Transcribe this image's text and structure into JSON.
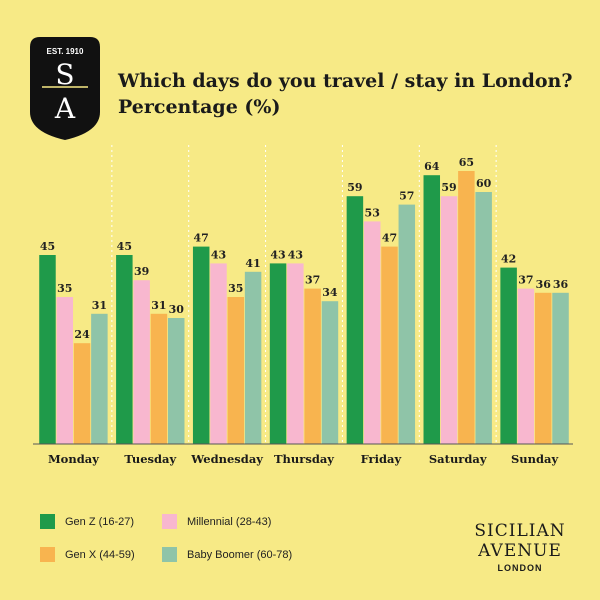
{
  "brand": {
    "est": "EST. 1910",
    "monogram_top": "S",
    "monogram_bottom": "A",
    "name_line1": "SICILIAN",
    "name_line2": "AVENUE",
    "name_line3": "LONDON"
  },
  "chart_data": {
    "type": "bar",
    "title": "Which days do you travel / stay in London?",
    "subtitle": "Percentage (%)",
    "categories": [
      "Monday",
      "Tuesday",
      "Wednesday",
      "Thursday",
      "Friday",
      "Saturday",
      "Sunday"
    ],
    "series": [
      {
        "name": "Gen Z (16-27)",
        "color": "#1f9a4a",
        "values": [
          45,
          45,
          47,
          43,
          59,
          64,
          42
        ]
      },
      {
        "name": "Millennial (28-43)",
        "color": "#f8b7cf",
        "values": [
          35,
          39,
          43,
          43,
          53,
          59,
          37
        ]
      },
      {
        "name": "Gen X (44-59)",
        "color": "#f8b44f",
        "values": [
          24,
          31,
          35,
          37,
          47,
          65,
          36
        ]
      },
      {
        "name": "Baby Boomer (60-78)",
        "color": "#8fc4a8",
        "values": [
          31,
          30,
          41,
          34,
          57,
          60,
          36
        ]
      }
    ],
    "ylim": [
      0,
      70
    ],
    "grid": false,
    "legend_position": "bottom-left"
  }
}
